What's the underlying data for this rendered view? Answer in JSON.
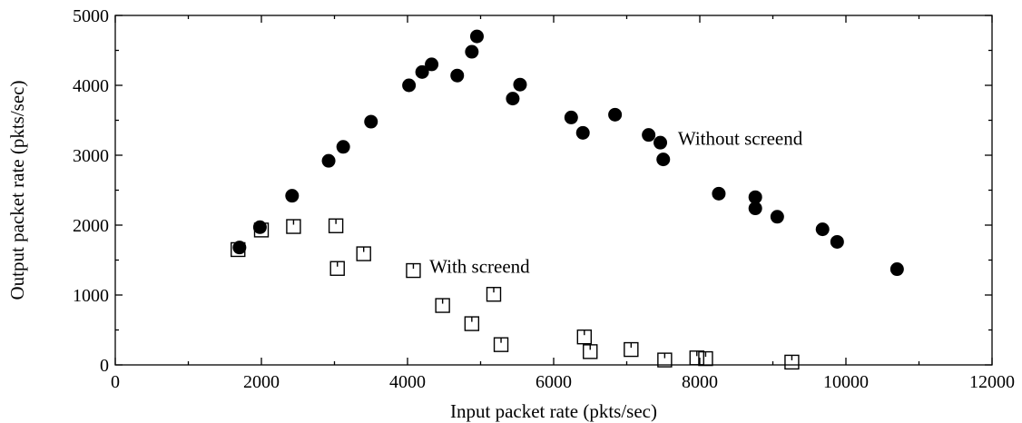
{
  "chart_data": {
    "type": "scatter",
    "xlabel": "Input packet rate (pkts/sec)",
    "ylabel": "Output packet rate (pkts/sec)",
    "xlim": [
      0,
      12000
    ],
    "ylim": [
      0,
      5000
    ],
    "x_ticks": [
      0,
      2000,
      4000,
      6000,
      8000,
      10000,
      12000
    ],
    "y_ticks": [
      0,
      1000,
      2000,
      3000,
      4000,
      5000
    ],
    "grid": false,
    "legend": "none",
    "series": [
      {
        "marker": "filled-circle",
        "color": "#000000",
        "label_ref": "without",
        "points": [
          [
            1700,
            1680
          ],
          [
            1980,
            1970
          ],
          [
            2420,
            2420
          ],
          [
            2920,
            2920
          ],
          [
            3120,
            3120
          ],
          [
            3500,
            3480
          ],
          [
            4020,
            4000
          ],
          [
            4200,
            4190
          ],
          [
            4330,
            4300
          ],
          [
            4680,
            4140
          ],
          [
            4880,
            4480
          ],
          [
            4950,
            4700
          ],
          [
            5440,
            3810
          ],
          [
            5540,
            4010
          ],
          [
            6240,
            3540
          ],
          [
            6400,
            3320
          ],
          [
            6840,
            3580
          ],
          [
            7300,
            3290
          ],
          [
            7460,
            3180
          ],
          [
            7500,
            2940
          ],
          [
            8260,
            2450
          ],
          [
            8760,
            2400
          ],
          [
            8760,
            2240
          ],
          [
            9060,
            2120
          ],
          [
            9680,
            1940
          ],
          [
            9880,
            1760
          ],
          [
            10700,
            1370
          ]
        ]
      },
      {
        "marker": "open-square",
        "color": "#000000",
        "label_ref": "with",
        "points": [
          [
            1680,
            1650
          ],
          [
            2000,
            1930
          ],
          [
            2440,
            1980
          ],
          [
            3020,
            1990
          ],
          [
            3040,
            1380
          ],
          [
            3400,
            1590
          ],
          [
            4080,
            1350
          ],
          [
            4480,
            850
          ],
          [
            4880,
            590
          ],
          [
            5180,
            1010
          ],
          [
            5280,
            290
          ],
          [
            6420,
            400
          ],
          [
            6500,
            190
          ],
          [
            7060,
            220
          ],
          [
            7520,
            70
          ],
          [
            7960,
            100
          ],
          [
            8080,
            90
          ],
          [
            9260,
            40
          ]
        ]
      }
    ],
    "annotations": {
      "without": {
        "text": "Without screend",
        "x": 7700,
        "y": 3150
      },
      "with": {
        "text": "With screend",
        "x": 4300,
        "y": 1320
      }
    }
  }
}
